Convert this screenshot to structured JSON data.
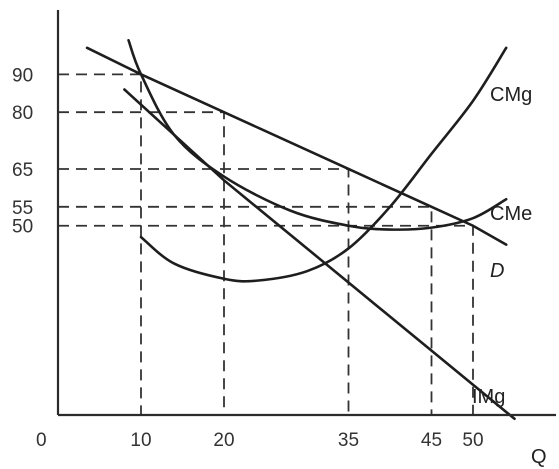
{
  "chart_data": {
    "type": "line",
    "title": "",
    "xlabel": "Q",
    "ylabel": "",
    "origin_label": "0",
    "xlim": [
      0,
      60
    ],
    "ylim": [
      0,
      107
    ],
    "x_ticks": [
      10,
      20,
      35,
      45,
      50
    ],
    "y_ticks": [
      90,
      80,
      65,
      55,
      50
    ],
    "grid": false,
    "series": [
      {
        "name": "D",
        "points": [
          [
            3.5,
            97
          ],
          [
            10,
            90
          ],
          [
            20,
            80
          ],
          [
            35,
            65
          ],
          [
            45,
            55
          ],
          [
            50,
            50
          ],
          [
            54,
            45
          ]
        ]
      },
      {
        "name": "IMg",
        "points": [
          [
            8,
            86
          ],
          [
            20,
            62
          ],
          [
            35,
            35
          ],
          [
            45,
            17
          ],
          [
            55,
            -1
          ]
        ]
      },
      {
        "name": "CMg",
        "points": [
          [
            10,
            47
          ],
          [
            14,
            40
          ],
          [
            20,
            36
          ],
          [
            24,
            35.5
          ],
          [
            30,
            38
          ],
          [
            35,
            44
          ],
          [
            40,
            55
          ],
          [
            45,
            69
          ],
          [
            50,
            83
          ],
          [
            54,
            97
          ]
        ]
      },
      {
        "name": "CMe",
        "points": [
          [
            8.5,
            99
          ],
          [
            10,
            90
          ],
          [
            14,
            74
          ],
          [
            20,
            63
          ],
          [
            28,
            54
          ],
          [
            35,
            50
          ],
          [
            40,
            49
          ],
          [
            45,
            49.5
          ],
          [
            50,
            52
          ],
          [
            54,
            57
          ]
        ]
      }
    ],
    "guides": [
      {
        "x": 10,
        "y": 90
      },
      {
        "x": 20,
        "y": 80
      },
      {
        "x": 35,
        "y": 65
      },
      {
        "x": 45,
        "y": 55
      },
      {
        "x": 50,
        "y": 50
      }
    ]
  }
}
